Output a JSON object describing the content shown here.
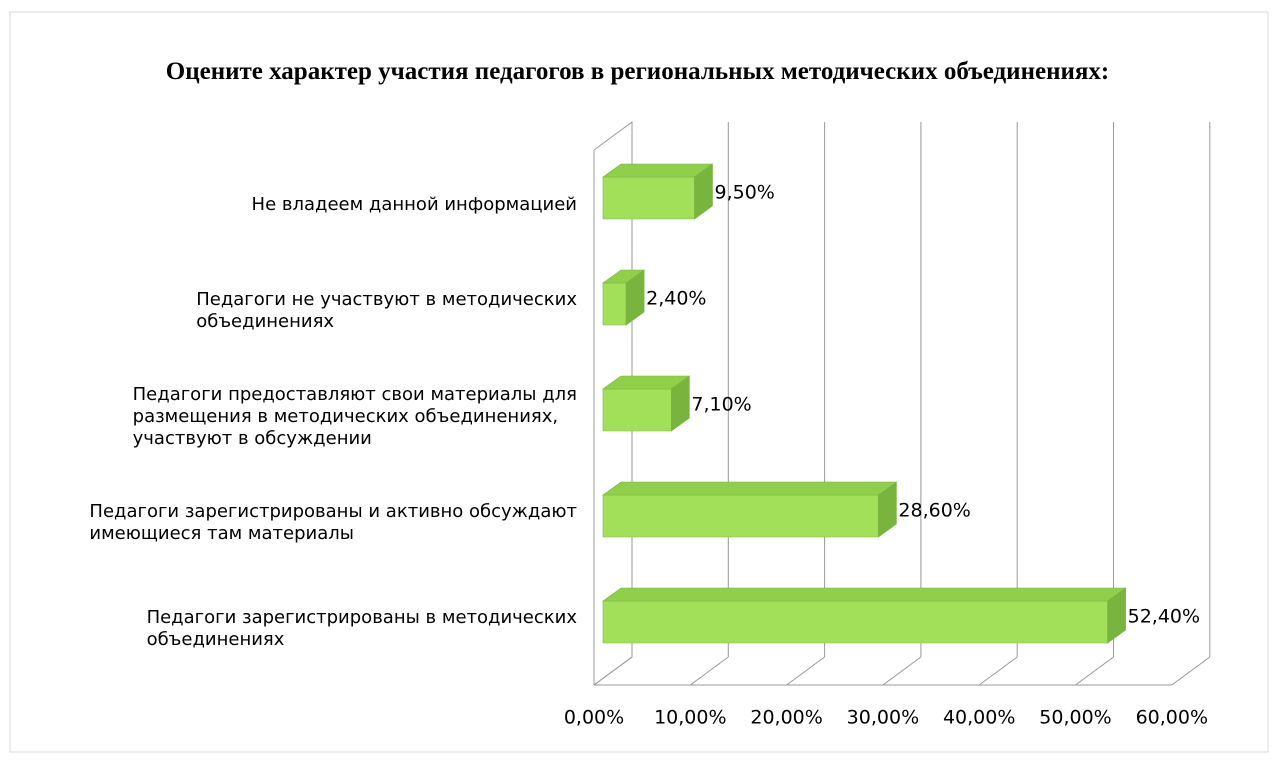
{
  "chart_data": {
    "type": "bar3d",
    "orientation": "horizontal",
    "title": "Оцените характер участия педагогов в региональных методических объединениях:",
    "categories": [
      "Не владеем данной информацией",
      "Педагоги не участвуют в методических\nобъединениях",
      "Педагоги предоставляют свои материалы для\nразмещения в методических объединениях,\nучаствуют в обсуждении",
      "Педагоги зарегистрированы и активно обсуждают\nимеющиеся там материалы",
      "Педагоги зарегистрированы в методических\nобъединениях"
    ],
    "values": [
      9.5,
      2.4,
      7.1,
      28.6,
      52.4
    ],
    "value_labels": [
      "9,50%",
      "2,40%",
      "7,10%",
      "28,60%",
      "52,40%"
    ],
    "color": "#a3e05a",
    "xlim": [
      0,
      60
    ],
    "xticks": [
      {
        "value": 0,
        "label": "0,00%"
      },
      {
        "value": 10,
        "label": "10,00%"
      },
      {
        "value": 20,
        "label": "20,00%"
      },
      {
        "value": 30,
        "label": "30,00%"
      },
      {
        "value": 40,
        "label": "40,00%"
      },
      {
        "value": 50,
        "label": "50,00%"
      },
      {
        "value": 60,
        "label": "60,00%"
      }
    ],
    "grid": true
  }
}
